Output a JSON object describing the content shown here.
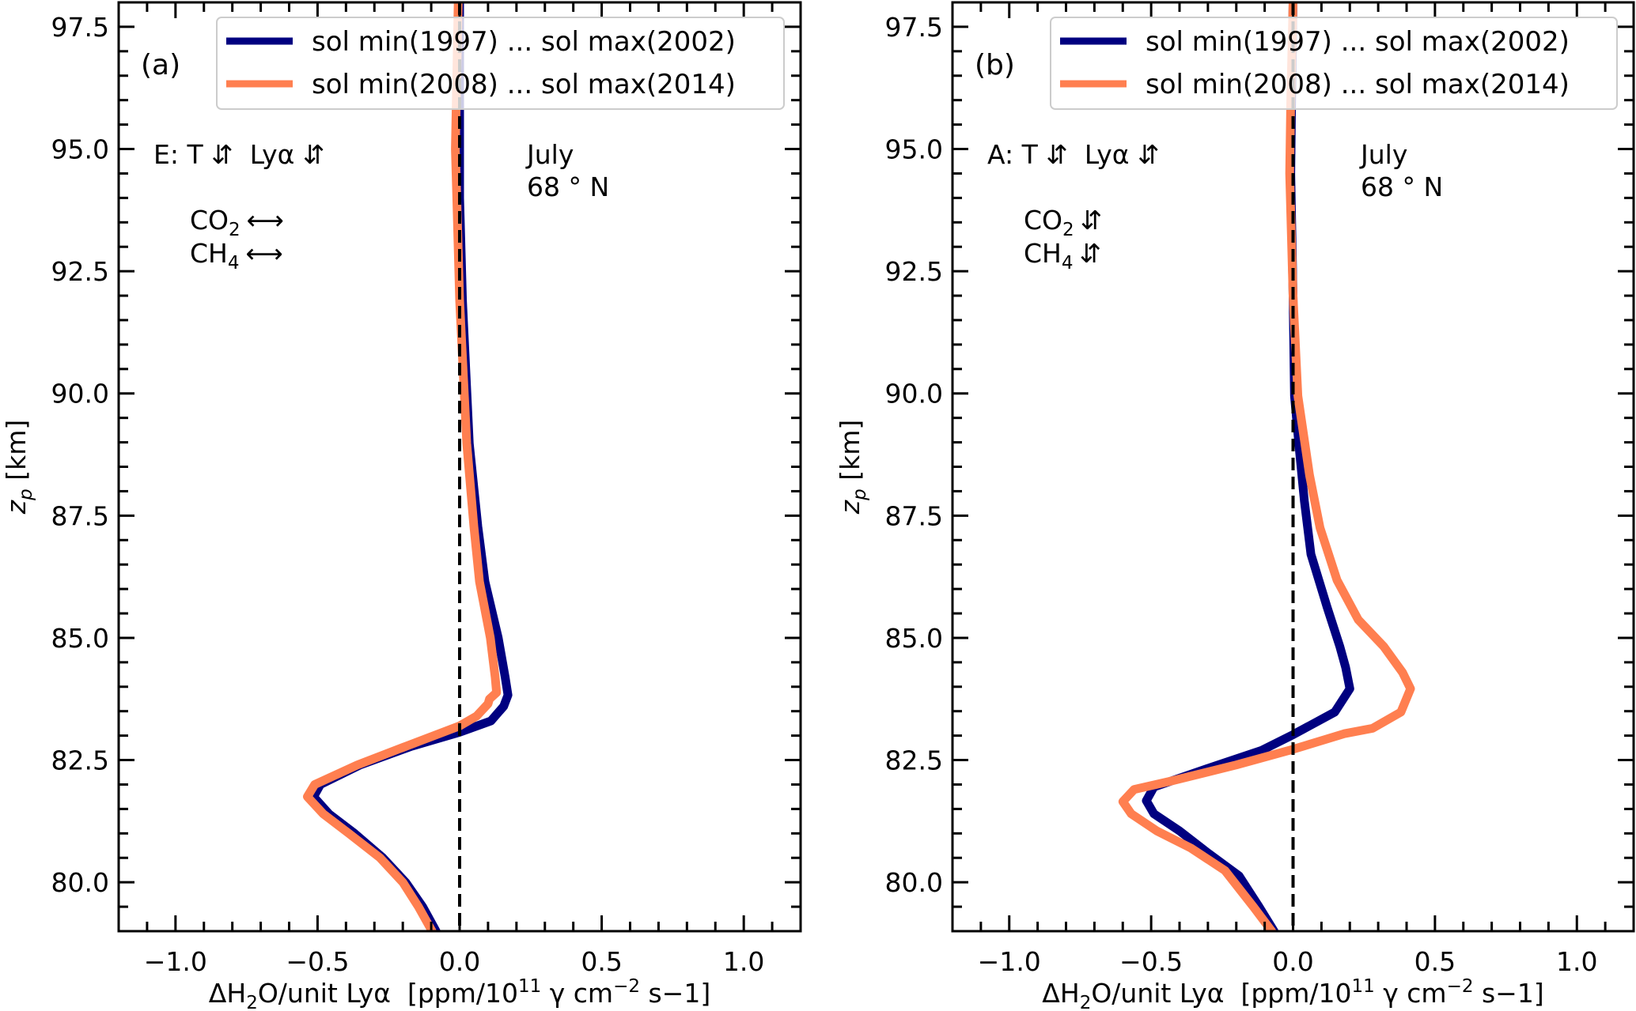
{
  "figure": {
    "background": "#ffffff"
  },
  "legend": {
    "entries": [
      {
        "label": "sol min(1997) ... sol max(2002)",
        "color": "#000080"
      },
      {
        "label": "sol min(2008) ... sol max(2014)",
        "color": "#FF7F50"
      }
    ],
    "placement": "top-right"
  },
  "chart_data": [
    {
      "type": "line",
      "panel_label": "(a)",
      "title": "",
      "xlabel": "ΔH₂O/unit Lyα  [ppm/10¹¹ γ cm⁻² s−1]",
      "xlabel_parts": {
        "pre": "ΔH",
        "sub": "2",
        "mid": "O/unit Lyα  [ppm/10",
        "sup1": "11",
        "mid2": " γ cm",
        "sup2": "−2",
        "post": " s−1]"
      },
      "ylabel": "z_p [km]",
      "ylabel_parts": {
        "main": "z",
        "sub": "p",
        "post": " [km]"
      },
      "xlim": [
        -1.2,
        1.2
      ],
      "ylim": [
        79.0,
        98.0
      ],
      "xticks": [
        -1.0,
        -0.5,
        0.0,
        0.5,
        1.0
      ],
      "xtick_labels": [
        "−1.0",
        "−0.5",
        "0.0",
        "0.5",
        "1.0"
      ],
      "yticks": [
        80.0,
        82.5,
        85.0,
        87.5,
        90.0,
        92.5,
        95.0,
        97.5
      ],
      "ytick_labels": [
        "80.0",
        "82.5",
        "85.0",
        "87.5",
        "90.0",
        "92.5",
        "95.0",
        "97.5"
      ],
      "x_minor_step": 0.1,
      "y_minor_step": 0.5,
      "grid": false,
      "reference_line": {
        "x": 0.0,
        "style": "dashed",
        "color": "#000000"
      },
      "annotations": {
        "scenario": "E: T ⇵  Lyα ⇵",
        "co2": {
          "main": "CO",
          "sub": "2",
          "arrow": "⟷"
        },
        "ch4": {
          "main": "CH",
          "sub": "4",
          "arrow": "⟷"
        },
        "month": "July",
        "latitude": "68 ° N"
      },
      "series": [
        {
          "name": "sol min(1997) ... sol max(2002)",
          "color": "#000080",
          "points": [
            [
              -0.083,
              79.0
            ],
            [
              -0.13,
              79.5
            ],
            [
              -0.19,
              80.0
            ],
            [
              -0.27,
              80.5
            ],
            [
              -0.37,
              81.0
            ],
            [
              -0.46,
              81.4
            ],
            [
              -0.514,
              81.75
            ],
            [
              -0.49,
              82.0
            ],
            [
              -0.35,
              82.4
            ],
            [
              -0.17,
              82.78
            ],
            [
              0.0,
              83.07
            ],
            [
              0.11,
              83.3
            ],
            [
              0.155,
              83.6
            ],
            [
              0.17,
              83.83
            ],
            [
              0.16,
              84.2
            ],
            [
              0.136,
              85.0
            ],
            [
              0.089,
              86.15
            ],
            [
              0.064,
              87.28
            ],
            [
              0.034,
              88.98
            ],
            [
              0.01,
              91.9
            ],
            [
              0.0,
              94.0
            ],
            [
              0.0,
              96.0
            ],
            [
              0.0,
              98.0
            ]
          ]
        },
        {
          "name": "sol min(2008) ... sol max(2014)",
          "color": "#FF7F50",
          "points": [
            [
              -0.097,
              79.0
            ],
            [
              -0.145,
              79.5
            ],
            [
              -0.2,
              80.0
            ],
            [
              -0.28,
              80.5
            ],
            [
              -0.39,
              81.0
            ],
            [
              -0.48,
              81.4
            ],
            [
              -0.536,
              81.75
            ],
            [
              -0.51,
              82.0
            ],
            [
              -0.36,
              82.4
            ],
            [
              -0.19,
              82.78
            ],
            [
              0.0,
              83.2
            ],
            [
              0.06,
              83.4
            ],
            [
              0.1,
              83.65
            ],
            [
              0.105,
              83.75
            ],
            [
              0.13,
              83.88
            ],
            [
              0.125,
              84.2
            ],
            [
              0.108,
              85.0
            ],
            [
              0.07,
              86.15
            ],
            [
              0.05,
              87.28
            ],
            [
              0.025,
              88.98
            ],
            [
              0.0,
              91.9
            ],
            [
              -0.01,
              94.0
            ],
            [
              -0.015,
              95.0
            ],
            [
              -0.01,
              96.5
            ],
            [
              -0.005,
              98.0
            ]
          ]
        }
      ]
    },
    {
      "type": "line",
      "panel_label": "(b)",
      "title": "",
      "xlabel": "ΔH₂O/unit Lyα  [ppm/10¹¹ γ cm⁻² s−1]",
      "xlabel_parts": {
        "pre": "ΔH",
        "sub": "2",
        "mid": "O/unit Lyα  [ppm/10",
        "sup1": "11",
        "mid2": " γ cm",
        "sup2": "−2",
        "post": " s−1]"
      },
      "ylabel": "z_p [km]",
      "ylabel_parts": {
        "main": "z",
        "sub": "p",
        "post": " [km]"
      },
      "xlim": [
        -1.2,
        1.2
      ],
      "ylim": [
        79.0,
        98.0
      ],
      "xticks": [
        -1.0,
        -0.5,
        0.0,
        0.5,
        1.0
      ],
      "xtick_labels": [
        "−1.0",
        "−0.5",
        "0.0",
        "0.5",
        "1.0"
      ],
      "yticks": [
        80.0,
        82.5,
        85.0,
        87.5,
        90.0,
        92.5,
        95.0,
        97.5
      ],
      "ytick_labels": [
        "80.0",
        "82.5",
        "85.0",
        "87.5",
        "90.0",
        "92.5",
        "95.0",
        "97.5"
      ],
      "x_minor_step": 0.1,
      "y_minor_step": 0.5,
      "grid": false,
      "reference_line": {
        "x": 0.0,
        "style": "dashed",
        "color": "#000000"
      },
      "annotations": {
        "scenario": "A: T ⇵  Lyα ⇵",
        "co2": {
          "main": "CO",
          "sub": "2",
          "arrow": "⇵"
        },
        "ch4": {
          "main": "CH",
          "sub": "4",
          "arrow": "⇵"
        },
        "month": "July",
        "latitude": "68 ° N"
      },
      "series": [
        {
          "name": "sol min(1997) ... sol max(2002)",
          "color": "#000080",
          "points": [
            [
              -0.067,
              79.0
            ],
            [
              -0.12,
              79.5
            ],
            [
              -0.19,
              80.13
            ],
            [
              -0.3,
              80.6
            ],
            [
              -0.4,
              81.05
            ],
            [
              -0.49,
              81.4
            ],
            [
              -0.517,
              81.67
            ],
            [
              -0.49,
              81.95
            ],
            [
              -0.27,
              82.39
            ],
            [
              -0.11,
              82.7
            ],
            [
              0.0,
              83.02
            ],
            [
              0.147,
              83.48
            ],
            [
              0.2,
              83.96
            ],
            [
              0.185,
              84.4
            ],
            [
              0.165,
              84.82
            ],
            [
              0.12,
              85.63
            ],
            [
              0.063,
              86.71
            ],
            [
              0.04,
              87.8
            ],
            [
              0.022,
              88.86
            ],
            [
              0.005,
              89.95
            ],
            [
              0.0,
              92.0
            ],
            [
              -0.008,
              94.5
            ],
            [
              -0.005,
              96.0
            ],
            [
              0.0,
              98.0
            ]
          ]
        },
        {
          "name": "sol min(2008) ... sol max(2014)",
          "color": "#FF7F50",
          "points": [
            [
              -0.075,
              79.0
            ],
            [
              -0.14,
              79.5
            ],
            [
              -0.24,
              80.24
            ],
            [
              -0.36,
              80.7
            ],
            [
              -0.48,
              81.05
            ],
            [
              -0.57,
              81.4
            ],
            [
              -0.6,
              81.65
            ],
            [
              -0.56,
              81.9
            ],
            [
              -0.43,
              82.07
            ],
            [
              -0.2,
              82.4
            ],
            [
              0.0,
              82.72
            ],
            [
              0.18,
              83.04
            ],
            [
              0.28,
              83.15
            ],
            [
              0.38,
              83.48
            ],
            [
              0.414,
              83.96
            ],
            [
              0.386,
              84.29
            ],
            [
              0.32,
              84.82
            ],
            [
              0.23,
              85.37
            ],
            [
              0.155,
              86.18
            ],
            [
              0.095,
              87.25
            ],
            [
              0.058,
              88.33
            ],
            [
              0.017,
              89.95
            ],
            [
              0.0,
              92.0
            ],
            [
              -0.012,
              94.5
            ],
            [
              -0.008,
              96.0
            ],
            [
              0.0,
              98.0
            ]
          ]
        }
      ]
    }
  ]
}
